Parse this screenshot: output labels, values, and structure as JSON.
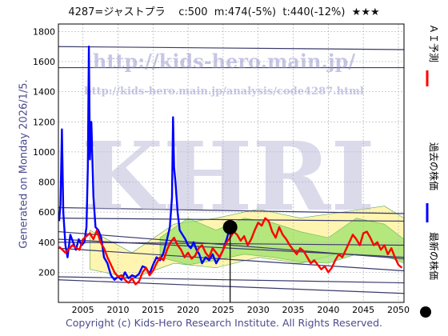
{
  "header": {
    "text": "4287=ジャストプラ    c:500  m:474(-5%)  t:440(-12%)  ★★★"
  },
  "left_label": "Generated on Monday 2026/1/5.",
  "footer": "Copyright (c) Kids-Hero Research Institute. All Rights Reserved.",
  "watermark": {
    "url1": "http://kids-hero.main.jp/",
    "url2": "http://kids-hero.main.jp/analysis/code4287.html",
    "big": "KHRI"
  },
  "legend": {
    "ai_prediction": "ＡＩ予測",
    "past_price": "過去の株価",
    "latest_price": "最新の株価",
    "colors": {
      "ai": "#ff0000",
      "past": "#0000ff",
      "latest": "#000000"
    }
  },
  "chart_data": {
    "type": "line",
    "xlim": [
      2001.5,
      2050.8
    ],
    "ylim": [
      0,
      1850
    ],
    "xticks": [
      2005,
      2010,
      2015,
      2020,
      2025,
      2030,
      2035,
      2040,
      2045,
      2050
    ],
    "yticks": [
      200,
      400,
      600,
      800,
      1000,
      1200,
      1400,
      1600,
      1800
    ],
    "grid": true,
    "series": [
      {
        "name": "過去の株価",
        "color": "#0000ff",
        "x": [
          2001.6,
          2001.8,
          2002.0,
          2002.2,
          2002.5,
          2002.8,
          2003.2,
          2003.6,
          2004.0,
          2004.4,
          2004.8,
          2005.2,
          2005.5,
          2005.7,
          2005.85,
          2006.0,
          2006.2,
          2006.5,
          2006.8,
          2007.2,
          2007.6,
          2008.0,
          2008.5,
          2009.0,
          2009.5,
          2010.0,
          2010.5,
          2011.0,
          2011.5,
          2012.0,
          2012.5,
          2013.0,
          2013.5,
          2014.0,
          2014.5,
          2015.0,
          2015.5,
          2016.0,
          2016.5,
          2017.0,
          2017.4,
          2017.7,
          2017.85,
          2018.0,
          2018.2,
          2018.5,
          2018.8,
          2019.2,
          2019.6,
          2020.0,
          2020.4,
          2020.8,
          2021.2,
          2021.6,
          2022.0,
          2022.5,
          2023.0,
          2023.5,
          2024.0,
          2024.5,
          2025.0,
          2025.5,
          2026.0
        ],
        "y": [
          540,
          650,
          1150,
          600,
          380,
          300,
          450,
          400,
          350,
          420,
          380,
          400,
          500,
          900,
          1700,
          950,
          1200,
          700,
          500,
          480,
          430,
          300,
          260,
          180,
          150,
          170,
          150,
          200,
          160,
          180,
          170,
          190,
          240,
          230,
          190,
          250,
          300,
          280,
          330,
          420,
          500,
          700,
          1230,
          900,
          800,
          600,
          480,
          450,
          420,
          380,
          360,
          400,
          350,
          320,
          260,
          300,
          280,
          320,
          260,
          300,
          350,
          420,
          500
        ]
      },
      {
        "name": "ＡＩ予測",
        "color": "#ff0000",
        "x": [
          2001.6,
          2002.5,
          2003.5,
          2004.5,
          2005.0,
          2005.5,
          2006.0,
          2006.5,
          2007.0,
          2007.5,
          2008.0,
          2008.5,
          2009.0,
          2009.5,
          2010.0,
          2010.5,
          2011.0,
          2011.5,
          2012.0,
          2012.5,
          2013.0,
          2013.5,
          2014.0,
          2014.5,
          2015.0,
          2015.5,
          2016.0,
          2016.5,
          2017.0,
          2017.5,
          2018.0,
          2018.5,
          2019.0,
          2019.5,
          2020.0,
          2020.5,
          2021.0,
          2021.5,
          2022.0,
          2022.5,
          2023.0,
          2023.5,
          2024.0,
          2024.5,
          2025.0,
          2025.5,
          2026.0,
          2026.5,
          2027.0,
          2027.5,
          2028.0,
          2028.5,
          2029.0,
          2029.5,
          2030.0,
          2030.5,
          2031.0,
          2031.5,
          2032.0,
          2032.5,
          2033.0,
          2033.5,
          2034.0,
          2034.5,
          2035.0,
          2035.5,
          2036.0,
          2036.5,
          2037.0,
          2037.5,
          2038.0,
          2038.5,
          2039.0,
          2039.5,
          2040.0,
          2040.5,
          2041.0,
          2041.5,
          2042.0,
          2042.5,
          2043.0,
          2043.5,
          2044.0,
          2044.5,
          2045.0,
          2045.5,
          2046.0,
          2046.5,
          2047.0,
          2047.5,
          2048.0,
          2048.5,
          2049.0,
          2049.5,
          2050.0,
          2050.5
        ],
        "y": [
          370,
          330,
          380,
          350,
          420,
          440,
          460,
          420,
          480,
          400,
          360,
          300,
          250,
          200,
          170,
          180,
          150,
          130,
          160,
          120,
          140,
          200,
          230,
          180,
          210,
          260,
          300,
          280,
          350,
          400,
          430,
          380,
          350,
          300,
          330,
          290,
          310,
          360,
          380,
          330,
          300,
          360,
          330,
          300,
          350,
          400,
          430,
          470,
          450,
          410,
          440,
          380,
          420,
          480,
          530,
          510,
          560,
          540,
          470,
          430,
          500,
          450,
          420,
          380,
          350,
          320,
          360,
          340,
          300,
          260,
          280,
          250,
          220,
          240,
          200,
          230,
          280,
          320,
          300,
          350,
          400,
          450,
          420,
          380,
          460,
          470,
          430,
          380,
          400,
          350,
          380,
          320,
          360,
          300,
          250,
          230
        ]
      }
    ],
    "latest_point": {
      "x": 2026.0,
      "y": 500
    },
    "latest_line_x": 2026.0
  }
}
